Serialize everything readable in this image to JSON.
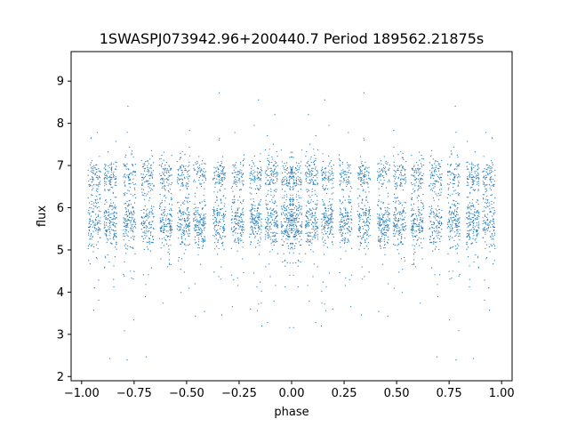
{
  "chart_data": {
    "type": "scatter",
    "title": "1SWASPJ073942.96+200440.7 Period 189562.21875s",
    "xlabel": "phase",
    "ylabel": "flux",
    "xlim": [
      -1.05,
      1.05
    ],
    "ylim": [
      1.9,
      9.7
    ],
    "xticks": [
      -1.0,
      -0.75,
      -0.5,
      -0.25,
      0.0,
      0.25,
      0.5,
      0.75,
      1.0
    ],
    "xtick_labels": [
      "−1.00",
      "−0.75",
      "−0.50",
      "−0.25",
      "0.00",
      "0.25",
      "0.50",
      "0.75",
      "1.00"
    ],
    "yticks": [
      2,
      3,
      4,
      5,
      6,
      7,
      8,
      9
    ],
    "ytick_labels": [
      "2",
      "3",
      "4",
      "5",
      "6",
      "7",
      "8",
      "9"
    ],
    "grid": false,
    "legend": "none",
    "point_color": "#1f77b4",
    "series": [
      {
        "bands": [
          {
            "y_center": 5.65,
            "y_spread": 0.3
          },
          {
            "y_center": 6.75,
            "y_spread": 0.2
          }
        ],
        "x_range": [
          -0.98,
          0.98
        ],
        "outlier_range": [
          2.3,
          9.3
        ],
        "symmetric_about_zero": true
      }
    ]
  }
}
